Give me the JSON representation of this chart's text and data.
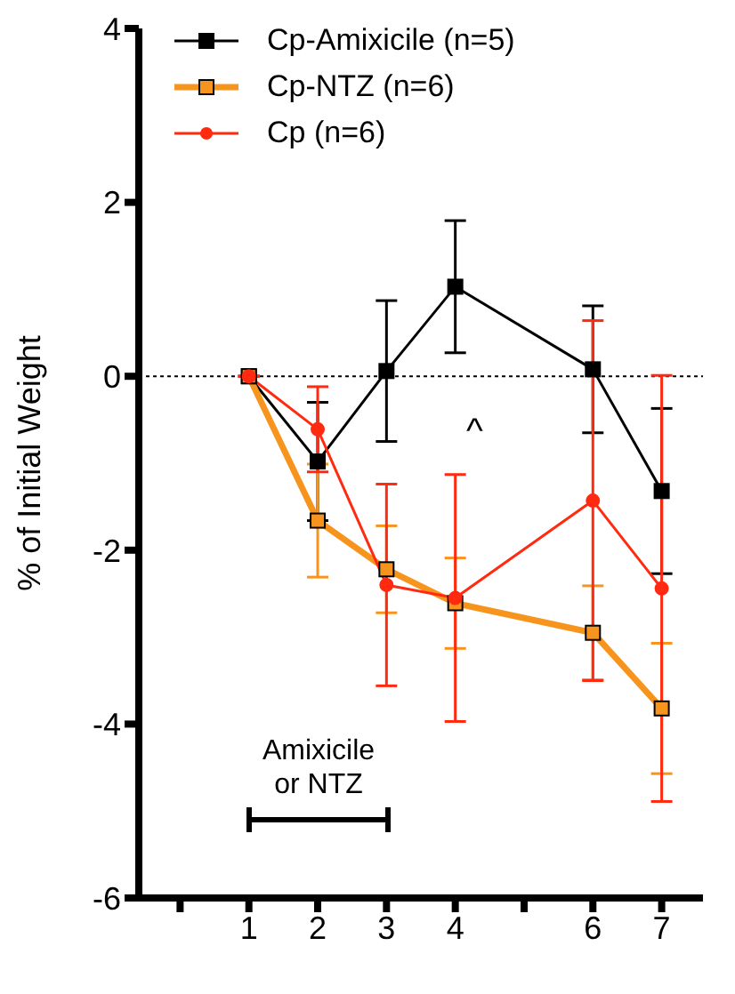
{
  "chart_data": {
    "type": "line",
    "ylabel": "% of Initial Weight",
    "x": [
      1,
      2,
      3,
      4,
      6,
      7
    ],
    "xlim": [
      -0.6,
      7.6
    ],
    "xticks": [
      {
        "value": 0,
        "label": null
      },
      1,
      2,
      3,
      4,
      {
        "value": 5,
        "label": null
      },
      6,
      7
    ],
    "ylim": [
      -6,
      4
    ],
    "yticks": [
      -6,
      -4,
      -2,
      0,
      2,
      4
    ],
    "series": [
      {
        "name": "Cp-Amixicile (n=5)",
        "color": "#000000",
        "marker": "square",
        "values": [
          0,
          -0.98,
          0.06,
          1.03,
          0.08,
          -1.32
        ],
        "errors": [
          null,
          0.68,
          0.81,
          0.76,
          0.73,
          0.95
        ]
      },
      {
        "name": "Cp-NTZ (n=6)",
        "color": "#f7941d",
        "marker": "square",
        "values": [
          0,
          -1.66,
          -2.22,
          -2.61,
          -2.95,
          -3.82
        ],
        "errors": [
          null,
          0.65,
          0.5,
          0.52,
          0.54,
          0.75
        ]
      },
      {
        "name": "Cp (n=6)",
        "color": "#ff2a10",
        "marker": "circle",
        "values": [
          0,
          -0.61,
          -2.4,
          -2.55,
          -1.43,
          -2.44
        ],
        "errors": [
          null,
          0.49,
          1.16,
          1.42,
          2.07,
          2.45
        ]
      }
    ],
    "ref_lines": [
      {
        "axis": "y",
        "value": 0,
        "line_style": "dotted",
        "color": "#000000"
      }
    ],
    "annotations": [
      "^",
      "Amixicile or NTZ"
    ],
    "legend": "top left",
    "grid": false
  }
}
